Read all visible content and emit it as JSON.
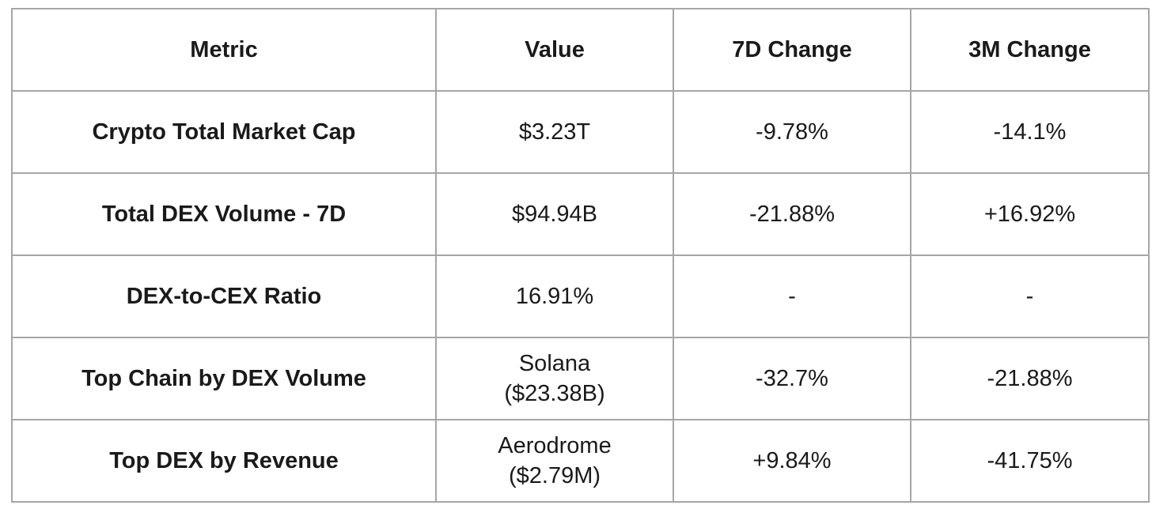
{
  "table": {
    "headers": [
      "Metric",
      "Value",
      "7D Change",
      "3M Change"
    ],
    "rows": [
      {
        "metric": "Crypto Total Market Cap",
        "value": "$3.23T",
        "change_7d": "-9.78%",
        "change_3m": "-14.1%"
      },
      {
        "metric": "Total DEX Volume - 7D",
        "value": "$94.94B",
        "change_7d": "-21.88%",
        "change_3m": "+16.92%"
      },
      {
        "metric": "DEX-to-CEX Ratio",
        "value": "16.91%",
        "change_7d": "-",
        "change_3m": "-"
      },
      {
        "metric": "Top Chain by DEX Volume",
        "value": "Solana\n($23.38B)",
        "change_7d": "-32.7%",
        "change_3m": "-21.88%"
      },
      {
        "metric": "Top DEX by Revenue",
        "value": "Aerodrome\n($2.79M)",
        "change_7d": "+9.84%",
        "change_3m": "-41.75%"
      }
    ]
  },
  "chart_data": {
    "type": "table",
    "columns": [
      "Metric",
      "Value",
      "7D Change",
      "3M Change"
    ],
    "rows": [
      [
        "Crypto Total Market Cap",
        "$3.23T",
        "-9.78%",
        "-14.1%"
      ],
      [
        "Total DEX Volume - 7D",
        "$94.94B",
        "-21.88%",
        "+16.92%"
      ],
      [
        "DEX-to-CEX Ratio",
        "16.91%",
        "-",
        "-"
      ],
      [
        "Top Chain by DEX Volume",
        "Solana ($23.38B)",
        "-32.7%",
        "-21.88%"
      ],
      [
        "Top DEX by Revenue",
        "Aerodrome ($2.79M)",
        "+9.84%",
        "-41.75%"
      ]
    ]
  },
  "colors": {
    "border": "#a6a6a6",
    "text": "#1a1a1a",
    "background": "#ffffff"
  }
}
